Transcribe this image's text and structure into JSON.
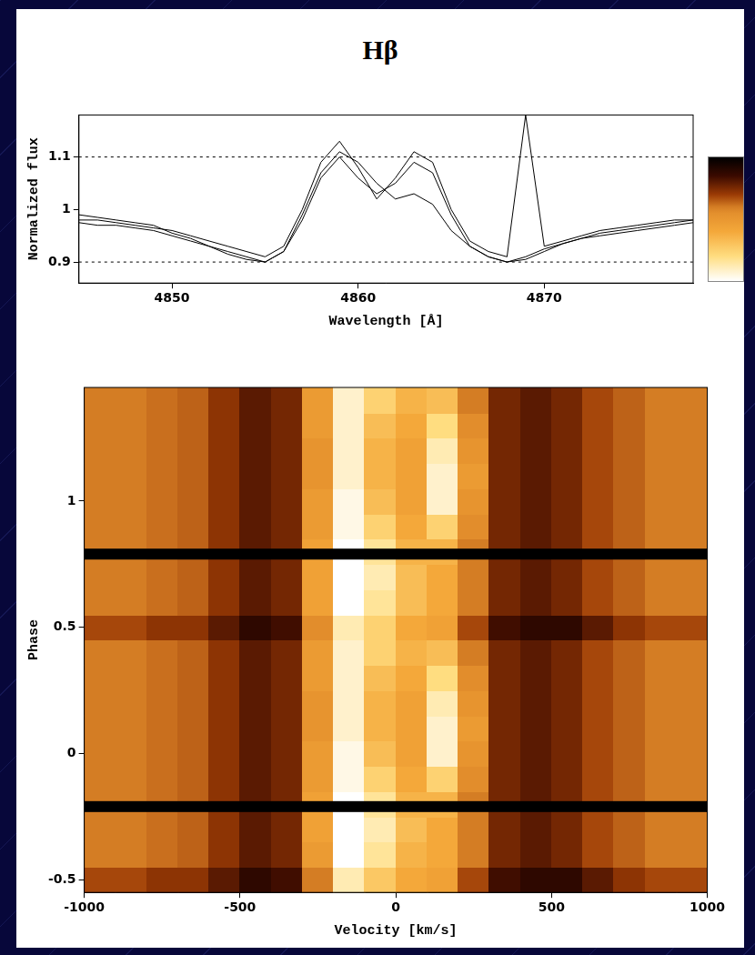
{
  "chart_data": [
    {
      "type": "line",
      "title": "Hβ",
      "xlabel": "Wavelength [Å]",
      "ylabel": "Normalized flux",
      "x": [
        4845,
        4846,
        4847,
        4848,
        4849,
        4850,
        4851,
        4852,
        4853,
        4854,
        4855,
        4856,
        4857,
        4858,
        4859,
        4860,
        4861,
        4862,
        4863,
        4864,
        4865,
        4866,
        4867,
        4868,
        4869,
        4870,
        4871,
        4872,
        4873,
        4874,
        4875,
        4876,
        4877,
        4878
      ],
      "series": [
        {
          "color": "#000000",
          "values": [
            0.98,
            0.98,
            0.975,
            0.97,
            0.965,
            0.96,
            0.95,
            0.94,
            0.93,
            0.92,
            0.91,
            0.93,
            1.0,
            1.09,
            1.13,
            1.08,
            1.02,
            1.06,
            1.11,
            1.09,
            1.0,
            0.94,
            0.92,
            0.91,
            1.18,
            0.93,
            0.94,
            0.95,
            0.96,
            0.965,
            0.97,
            0.975,
            0.98,
            0.98
          ]
        },
        {
          "color": "#000000",
          "values": [
            0.99,
            0.985,
            0.98,
            0.975,
            0.97,
            0.955,
            0.945,
            0.93,
            0.92,
            0.91,
            0.9,
            0.92,
            0.99,
            1.07,
            1.11,
            1.09,
            1.05,
            1.02,
            1.03,
            1.01,
            0.96,
            0.93,
            0.91,
            0.9,
            0.905,
            0.92,
            0.935,
            0.945,
            0.955,
            0.96,
            0.965,
            0.97,
            0.975,
            0.98
          ]
        },
        {
          "color": "#000000",
          "values": [
            0.975,
            0.97,
            0.97,
            0.965,
            0.96,
            0.95,
            0.94,
            0.93,
            0.915,
            0.905,
            0.9,
            0.92,
            0.98,
            1.06,
            1.1,
            1.06,
            1.03,
            1.05,
            1.09,
            1.07,
            0.99,
            0.93,
            0.91,
            0.9,
            0.91,
            0.925,
            0.935,
            0.945,
            0.95,
            0.955,
            0.96,
            0.965,
            0.97,
            0.975
          ]
        }
      ],
      "xlim": [
        4845,
        4878
      ],
      "ylim": [
        0.86,
        1.18
      ],
      "xticks": [
        4850,
        4860,
        4870
      ],
      "yticks": [
        0.9,
        1,
        1.1
      ],
      "reference_lines": [
        0.9,
        1.1
      ]
    },
    {
      "type": "heatmap",
      "xlabel": "Velocity [km/s]",
      "ylabel": "Phase",
      "xlim": [
        -1000,
        1000
      ],
      "ylim": [
        -0.55,
        1.45
      ],
      "xticks": [
        -1000,
        -500,
        0,
        500,
        1000
      ],
      "yticks": [
        -0.5,
        0,
        0.5,
        1
      ],
      "separators": [
        -0.21,
        0.79
      ],
      "colorbar": {
        "range": [
          0.88,
          1.13
        ]
      },
      "cells": {
        "x": [
          -950,
          -850,
          -750,
          -650,
          -550,
          -450,
          -350,
          -250,
          -150,
          -50,
          50,
          150,
          250,
          350,
          450,
          550,
          650,
          750,
          850,
          950
        ],
        "y": [
          -0.5,
          -0.4,
          -0.3,
          -0.2,
          -0.1,
          0,
          0.1,
          0.2,
          0.3,
          0.4,
          0.5,
          0.6,
          0.7,
          0.8,
          0.9,
          1,
          1.1,
          1.2,
          1.3,
          1.4
        ],
        "values": [
          [
            0.96,
            0.96,
            0.95,
            0.95,
            0.93,
            0.91,
            0.92,
            0.98,
            1.1,
            1.06,
            1.03,
            1.02,
            0.96,
            0.92,
            0.91,
            0.91,
            0.93,
            0.95,
            0.96,
            0.96
          ],
          [
            0.98,
            0.98,
            0.975,
            0.97,
            0.95,
            0.93,
            0.94,
            1.01,
            1.13,
            1.09,
            1.04,
            1.03,
            0.98,
            0.94,
            0.93,
            0.94,
            0.96,
            0.97,
            0.98,
            0.98
          ],
          [
            0.98,
            0.98,
            0.975,
            0.97,
            0.95,
            0.93,
            0.94,
            1.02,
            1.14,
            1.1,
            1.05,
            1.03,
            0.98,
            0.94,
            0.93,
            0.94,
            0.96,
            0.97,
            0.98,
            0.98
          ],
          [
            0.98,
            0.98,
            0.975,
            0.97,
            0.95,
            0.93,
            0.94,
            1.02,
            1.13,
            1.09,
            1.04,
            1.04,
            0.98,
            0.94,
            0.93,
            0.94,
            0.96,
            0.97,
            0.98,
            0.98
          ],
          [
            0.98,
            0.98,
            0.975,
            0.97,
            0.95,
            0.93,
            0.94,
            1.01,
            1.12,
            1.07,
            1.03,
            1.07,
            0.99,
            0.94,
            0.93,
            0.94,
            0.96,
            0.97,
            0.98,
            0.98
          ],
          [
            0.98,
            0.98,
            0.975,
            0.97,
            0.95,
            0.93,
            0.94,
            1.01,
            1.12,
            1.05,
            1.02,
            1.11,
            1.0,
            0.94,
            0.93,
            0.94,
            0.96,
            0.97,
            0.98,
            0.98
          ],
          [
            0.98,
            0.98,
            0.975,
            0.97,
            0.95,
            0.93,
            0.94,
            1.0,
            1.11,
            1.04,
            1.02,
            1.11,
            1.01,
            0.94,
            0.93,
            0.94,
            0.96,
            0.97,
            0.98,
            0.98
          ],
          [
            0.98,
            0.98,
            0.975,
            0.97,
            0.95,
            0.93,
            0.94,
            1.0,
            1.11,
            1.04,
            1.02,
            1.1,
            1.0,
            0.94,
            0.93,
            0.94,
            0.96,
            0.97,
            0.98,
            0.98
          ],
          [
            0.98,
            0.98,
            0.975,
            0.97,
            0.95,
            0.93,
            0.94,
            1.01,
            1.11,
            1.05,
            1.03,
            1.08,
            0.99,
            0.94,
            0.93,
            0.94,
            0.96,
            0.97,
            0.98,
            0.98
          ],
          [
            0.98,
            0.98,
            0.975,
            0.97,
            0.95,
            0.93,
            0.94,
            1.01,
            1.11,
            1.07,
            1.04,
            1.05,
            0.98,
            0.94,
            0.93,
            0.94,
            0.96,
            0.97,
            0.98,
            0.98
          ],
          [
            0.96,
            0.96,
            0.95,
            0.95,
            0.93,
            0.91,
            0.92,
            0.99,
            1.1,
            1.07,
            1.03,
            1.02,
            0.96,
            0.92,
            0.91,
            0.91,
            0.93,
            0.95,
            0.96,
            0.96
          ],
          [
            0.98,
            0.98,
            0.975,
            0.97,
            0.95,
            0.93,
            0.94,
            1.02,
            1.13,
            1.09,
            1.05,
            1.03,
            0.98,
            0.94,
            0.93,
            0.94,
            0.96,
            0.97,
            0.98,
            0.98
          ],
          [
            0.98,
            0.98,
            0.975,
            0.97,
            0.95,
            0.93,
            0.94,
            1.02,
            1.14,
            1.1,
            1.05,
            1.03,
            0.98,
            0.94,
            0.93,
            0.94,
            0.96,
            0.97,
            0.98,
            0.98
          ],
          [
            0.98,
            0.98,
            0.975,
            0.97,
            0.95,
            0.93,
            0.94,
            1.02,
            1.13,
            1.09,
            1.04,
            1.04,
            0.98,
            0.94,
            0.93,
            0.94,
            0.96,
            0.97,
            0.98,
            0.98
          ],
          [
            0.98,
            0.98,
            0.975,
            0.97,
            0.95,
            0.93,
            0.94,
            1.01,
            1.12,
            1.07,
            1.03,
            1.07,
            0.99,
            0.94,
            0.93,
            0.94,
            0.96,
            0.97,
            0.98,
            0.98
          ],
          [
            0.98,
            0.98,
            0.975,
            0.97,
            0.95,
            0.93,
            0.94,
            1.01,
            1.12,
            1.05,
            1.02,
            1.11,
            1.0,
            0.94,
            0.93,
            0.94,
            0.96,
            0.97,
            0.98,
            0.98
          ],
          [
            0.98,
            0.98,
            0.975,
            0.97,
            0.95,
            0.93,
            0.94,
            1.0,
            1.11,
            1.04,
            1.02,
            1.11,
            1.01,
            0.94,
            0.93,
            0.94,
            0.96,
            0.97,
            0.98,
            0.98
          ],
          [
            0.98,
            0.98,
            0.975,
            0.97,
            0.95,
            0.93,
            0.94,
            1.0,
            1.11,
            1.04,
            1.02,
            1.1,
            1.0,
            0.94,
            0.93,
            0.94,
            0.96,
            0.97,
            0.98,
            0.98
          ],
          [
            0.98,
            0.98,
            0.975,
            0.97,
            0.95,
            0.93,
            0.94,
            1.01,
            1.11,
            1.05,
            1.03,
            1.08,
            0.99,
            0.94,
            0.93,
            0.94,
            0.96,
            0.97,
            0.98,
            0.98
          ],
          [
            0.98,
            0.98,
            0.975,
            0.97,
            0.95,
            0.93,
            0.94,
            1.01,
            1.11,
            1.07,
            1.04,
            1.05,
            0.98,
            0.94,
            0.93,
            0.94,
            0.96,
            0.97,
            0.98,
            0.98
          ]
        ]
      }
    }
  ]
}
